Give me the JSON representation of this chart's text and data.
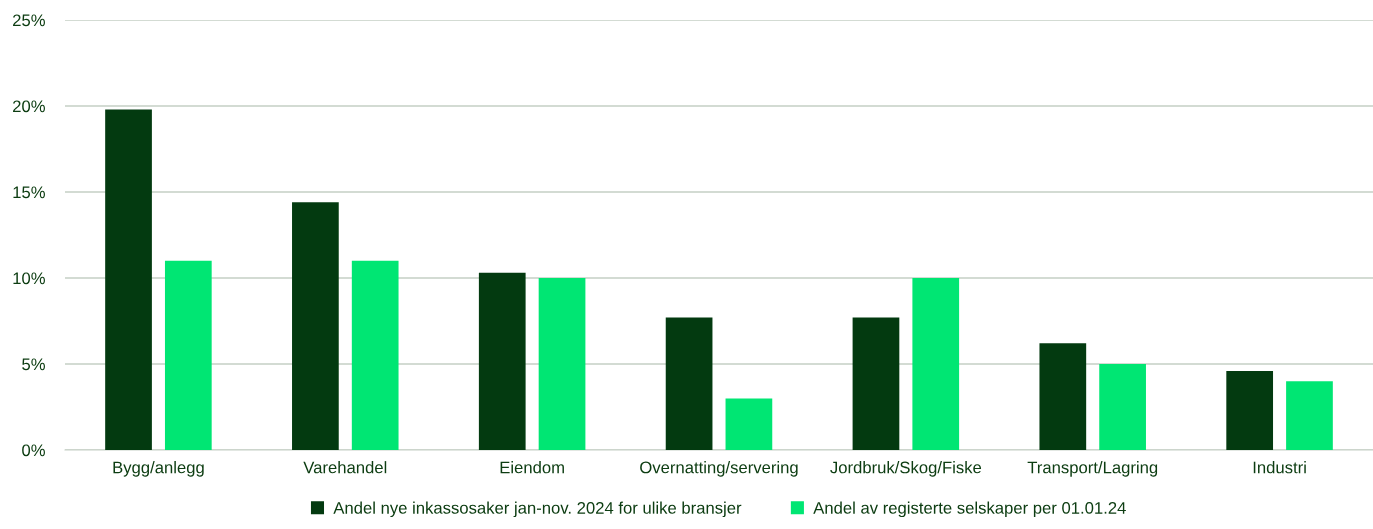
{
  "chart_data": {
    "type": "bar",
    "categories": [
      "Bygg/anlegg",
      "Varehandel",
      "Eiendom",
      "Overnatting/servering",
      "Jordbruk/Skog/Fiske",
      "Transport/Lagring",
      "Industri"
    ],
    "series": [
      {
        "name": "Andel nye inkassosaker jan-nov. 2024 for ulike bransjer",
        "color": "#033a10",
        "values": [
          19.8,
          14.4,
          10.3,
          7.7,
          7.7,
          6.2,
          4.6
        ]
      },
      {
        "name": "Andel av registerte selskaper per 01.01.24",
        "color": "#00e673",
        "values": [
          11,
          11,
          10,
          3,
          10,
          5,
          4
        ]
      }
    ],
    "ylim": [
      0,
      25
    ],
    "yticks": [
      {
        "value": 0,
        "label": "0%"
      },
      {
        "value": 5,
        "label": "5%"
      },
      {
        "value": 10,
        "label": "10%"
      },
      {
        "value": 15,
        "label": "15%"
      },
      {
        "value": 20,
        "label": "20%"
      },
      {
        "value": 25,
        "label": "25%"
      }
    ],
    "grid": "y",
    "legend": "bottom"
  }
}
